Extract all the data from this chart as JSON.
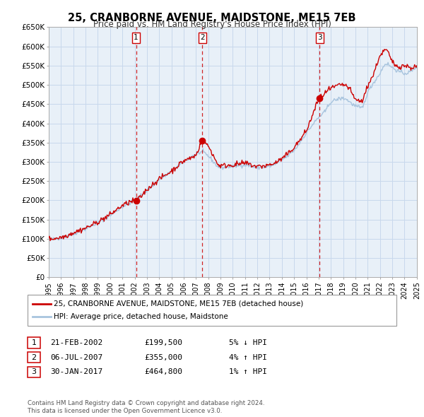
{
  "title": "25, CRANBORNE AVENUE, MAIDSTONE, ME15 7EB",
  "subtitle": "Price paid vs. HM Land Registry's House Price Index (HPI)",
  "xmin": 1995,
  "xmax": 2025,
  "ymin": 0,
  "ymax": 650000,
  "yticks": [
    0,
    50000,
    100000,
    150000,
    200000,
    250000,
    300000,
    350000,
    400000,
    450000,
    500000,
    550000,
    600000,
    650000
  ],
  "ytick_labels": [
    "£0",
    "£50K",
    "£100K",
    "£150K",
    "£200K",
    "£250K",
    "£300K",
    "£350K",
    "£400K",
    "£450K",
    "£500K",
    "£550K",
    "£600K",
    "£650K"
  ],
  "xtick_years": [
    1995,
    1996,
    1997,
    1998,
    1999,
    2000,
    2001,
    2002,
    2003,
    2004,
    2005,
    2006,
    2007,
    2008,
    2009,
    2010,
    2011,
    2012,
    2013,
    2014,
    2015,
    2016,
    2017,
    2018,
    2019,
    2020,
    2021,
    2022,
    2023,
    2024,
    2025
  ],
  "hpi_color": "#a8c4de",
  "price_color": "#cc0000",
  "grid_color": "#c8d8ec",
  "background_color": "#e8f0f8",
  "transactions": [
    {
      "num": 1,
      "date_x": 2002.12,
      "date_label": "21-FEB-2002",
      "price": 199500,
      "price_label": "£199,500",
      "hpi_pct": "5%",
      "direction": "↓",
      "marker_y": 199500
    },
    {
      "num": 2,
      "date_x": 2007.51,
      "date_label": "06-JUL-2007",
      "price": 355000,
      "price_label": "£355,000",
      "hpi_pct": "4%",
      "direction": "↑",
      "marker_y": 355000
    },
    {
      "num": 3,
      "date_x": 2017.08,
      "date_label": "30-JAN-2017",
      "price": 464800,
      "price_label": "£464,800",
      "hpi_pct": "1%",
      "direction": "↑",
      "marker_y": 464800
    }
  ],
  "legend_property_label": "25, CRANBORNE AVENUE, MAIDSTONE, ME15 7EB (detached house)",
  "legend_hpi_label": "HPI: Average price, detached house, Maidstone",
  "footer_line1": "Contains HM Land Registry data © Crown copyright and database right 2024.",
  "footer_line2": "This data is licensed under the Open Government Licence v3.0."
}
